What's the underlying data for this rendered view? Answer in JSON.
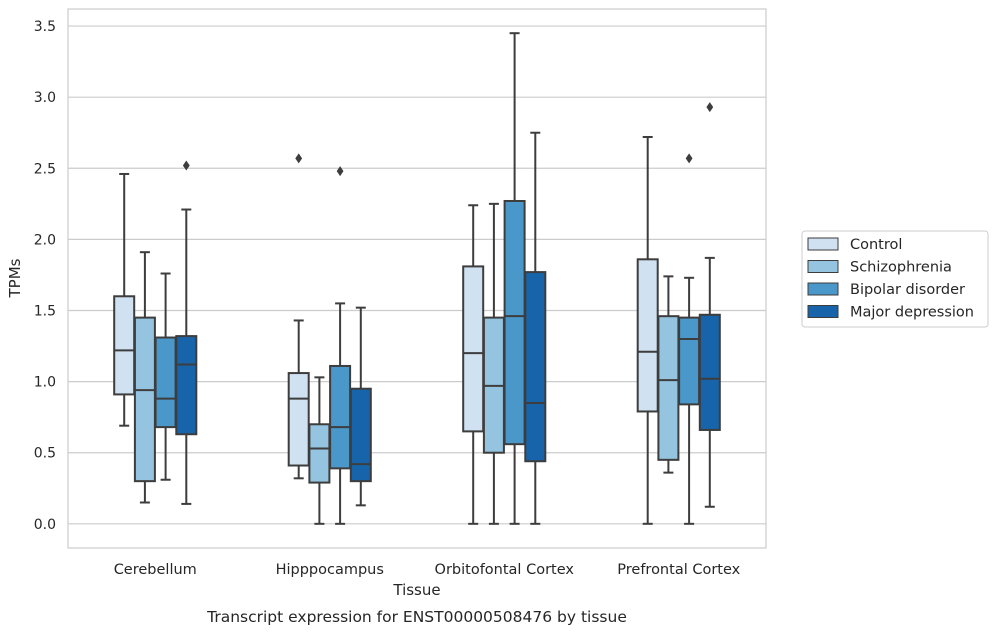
{
  "caption": "Transcript expression for ENST00000508476 by tissue",
  "chart_data": {
    "type": "boxplot",
    "xlabel": "Tissue",
    "ylabel": "TPMs",
    "ylim": [
      -0.17,
      3.62
    ],
    "yticks": [
      "0.0",
      "0.5",
      "1.0",
      "1.5",
      "2.0",
      "2.5",
      "3.0",
      "3.5"
    ],
    "categories": [
      "Cerebellum",
      "Hipppocampus",
      "Orbitofontal Cortex",
      "Prefrontal Cortex"
    ],
    "grid": "horizontal",
    "legend_position": "right",
    "series": [
      {
        "name": "Control",
        "color": "#d0e1f2",
        "boxes": [
          {
            "whislo": 0.69,
            "q1": 0.91,
            "med": 1.22,
            "q3": 1.6,
            "whishi": 2.46,
            "fliers": []
          },
          {
            "whislo": 0.32,
            "q1": 0.41,
            "med": 0.88,
            "q3": 1.06,
            "whishi": 1.43,
            "fliers": [
              2.57
            ]
          },
          {
            "whislo": 0.0,
            "q1": 0.65,
            "med": 1.2,
            "q3": 1.81,
            "whishi": 2.24,
            "fliers": []
          },
          {
            "whislo": 0.0,
            "q1": 0.79,
            "med": 1.21,
            "q3": 1.86,
            "whishi": 2.72,
            "fliers": []
          }
        ]
      },
      {
        "name": "Schizophrenia",
        "color": "#94c4df",
        "boxes": [
          {
            "whislo": 0.15,
            "q1": 0.3,
            "med": 0.94,
            "q3": 1.45,
            "whishi": 1.91,
            "fliers": []
          },
          {
            "whislo": 0.0,
            "q1": 0.29,
            "med": 0.53,
            "q3": 0.7,
            "whishi": 1.03,
            "fliers": []
          },
          {
            "whislo": 0.0,
            "q1": 0.5,
            "med": 0.97,
            "q3": 1.45,
            "whishi": 2.25,
            "fliers": []
          },
          {
            "whislo": 0.36,
            "q1": 0.45,
            "med": 1.01,
            "q3": 1.46,
            "whishi": 1.74,
            "fliers": []
          }
        ]
      },
      {
        "name": "Bipolar disorder",
        "color": "#4a98c9",
        "boxes": [
          {
            "whislo": 0.31,
            "q1": 0.68,
            "med": 0.88,
            "q3": 1.31,
            "whishi": 1.76,
            "fliers": []
          },
          {
            "whislo": 0.0,
            "q1": 0.39,
            "med": 0.68,
            "q3": 1.11,
            "whishi": 1.55,
            "fliers": [
              2.48
            ]
          },
          {
            "whislo": 0.0,
            "q1": 0.56,
            "med": 1.46,
            "q3": 2.27,
            "whishi": 3.45,
            "fliers": []
          },
          {
            "whislo": 0.0,
            "q1": 0.84,
            "med": 1.3,
            "q3": 1.45,
            "whishi": 1.73,
            "fliers": [
              2.57
            ]
          }
        ]
      },
      {
        "name": "Major depression",
        "color": "#1764ab",
        "boxes": [
          {
            "whislo": 0.14,
            "q1": 0.63,
            "med": 1.12,
            "q3": 1.32,
            "whishi": 2.21,
            "fliers": [
              2.52
            ]
          },
          {
            "whislo": 0.13,
            "q1": 0.3,
            "med": 0.42,
            "q3": 0.95,
            "whishi": 1.52,
            "fliers": []
          },
          {
            "whislo": 0.0,
            "q1": 0.44,
            "med": 0.85,
            "q3": 1.77,
            "whishi": 2.75,
            "fliers": []
          },
          {
            "whislo": 0.12,
            "q1": 0.66,
            "med": 1.02,
            "q3": 1.47,
            "whishi": 1.87,
            "fliers": [
              2.93
            ]
          }
        ]
      }
    ]
  }
}
